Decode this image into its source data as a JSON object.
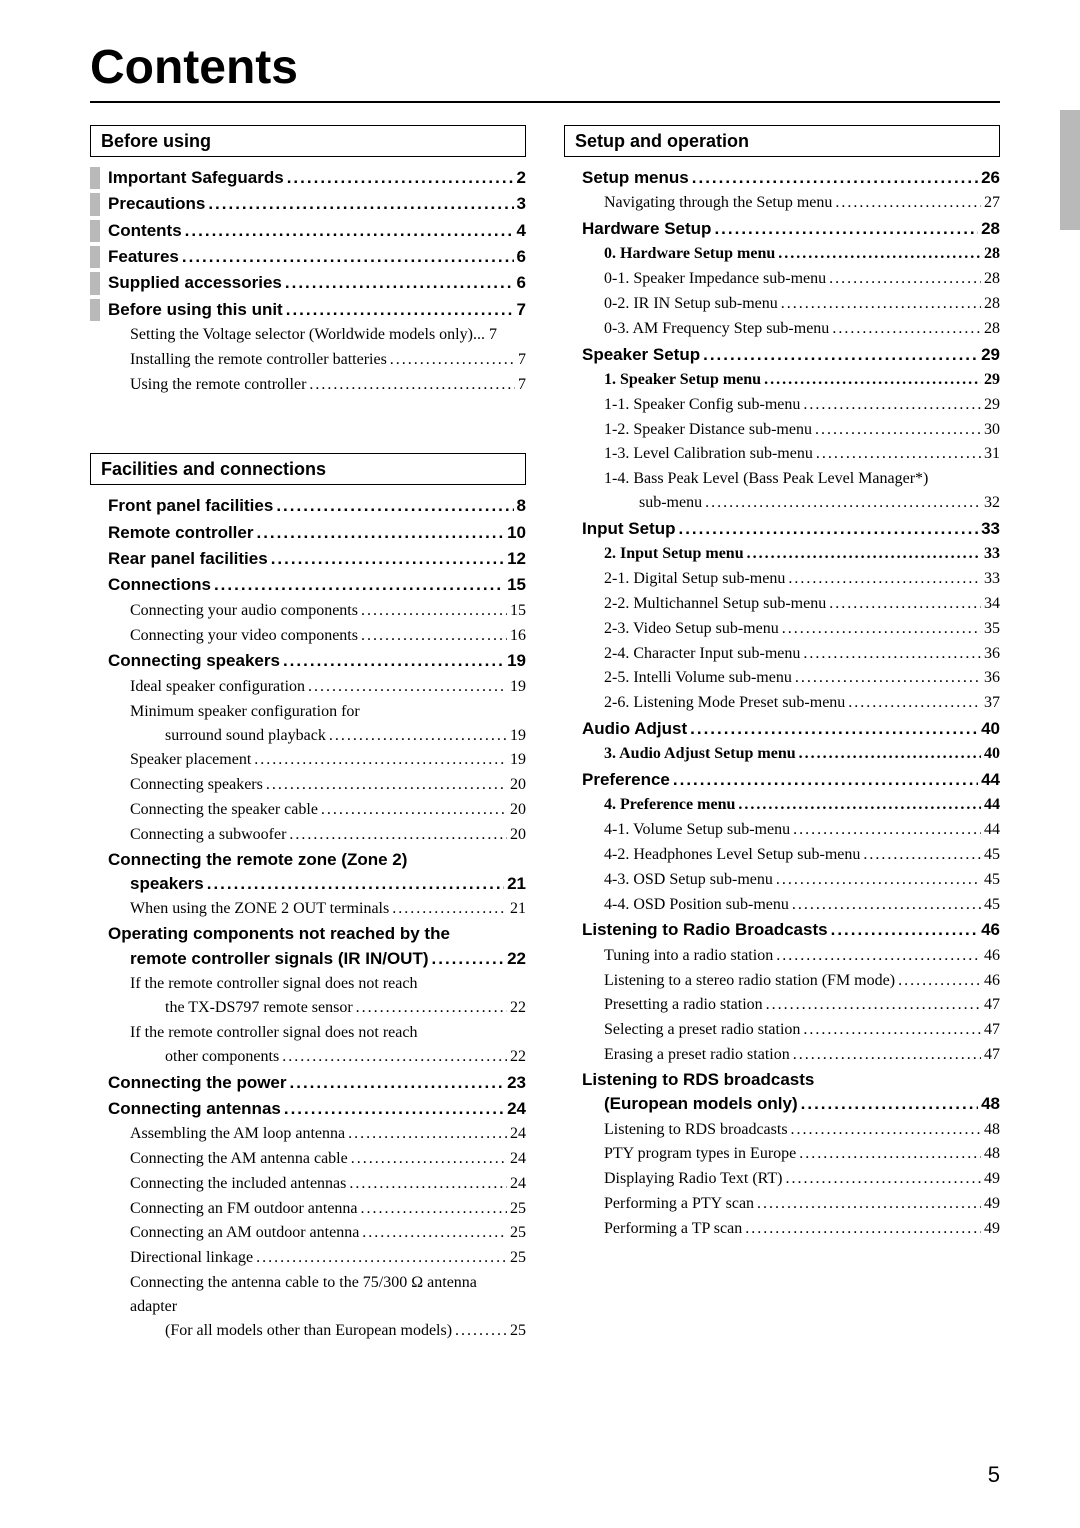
{
  "title": "Contents",
  "page_number": "5",
  "dots": "............................................................................................................",
  "left": {
    "sections": [
      {
        "heading": "Before using",
        "items": [
          {
            "cls": "lvl1 withbar",
            "t": "Important Safeguards",
            "p": "2"
          },
          {
            "cls": "lvl1 withbar",
            "t": "Precautions",
            "p": "3"
          },
          {
            "cls": "lvl1 withbar",
            "t": "Contents",
            "p": "4"
          },
          {
            "cls": "lvl1 withbar",
            "t": "Features",
            "p": "6"
          },
          {
            "cls": "lvl1 withbar",
            "t": "Supplied accessories",
            "p": "6"
          },
          {
            "cls": "lvl1 withbar",
            "t": "Before using this unit",
            "p": "7"
          },
          {
            "cls": "lvl2",
            "t": "Setting the Voltage selector (Worldwide models only)",
            "sep": " ... ",
            "p": "7"
          },
          {
            "cls": "lvl2",
            "t": "Installing the remote controller batteries",
            "p": "7"
          },
          {
            "cls": "lvl2",
            "t": "Using the remote controller",
            "p": "7"
          }
        ]
      },
      {
        "gap": true,
        "heading": "Facilities and connections",
        "items": [
          {
            "cls": "lvl1",
            "t": "Front panel facilities",
            "p": "8"
          },
          {
            "cls": "lvl1",
            "t": "Remote controller",
            "p": "10"
          },
          {
            "cls": "lvl1",
            "t": "Rear panel facilities",
            "p": "12"
          },
          {
            "cls": "lvl1",
            "t": "Connections",
            "p": "15"
          },
          {
            "cls": "lvl2",
            "t": "Connecting your audio components",
            "p": "15"
          },
          {
            "cls": "lvl2",
            "t": "Connecting your video components",
            "p": "16"
          },
          {
            "cls": "lvl1",
            "t": "Connecting speakers",
            "p": "19"
          },
          {
            "cls": "lvl2",
            "t": "Ideal speaker configuration",
            "p": "19"
          },
          {
            "cls": "wrap2",
            "t": "Minimum speaker configuration for"
          },
          {
            "cls": "lvl3",
            "t": "surround sound playback",
            "p": "19"
          },
          {
            "cls": "lvl2",
            "t": "Speaker placement",
            "p": "19"
          },
          {
            "cls": "lvl2",
            "t": "Connecting speakers",
            "p": "20"
          },
          {
            "cls": "lvl2",
            "t": "Connecting the speaker cable",
            "p": "20"
          },
          {
            "cls": "lvl2",
            "t": "Connecting a subwoofer",
            "p": "20"
          },
          {
            "cls": "wrap1",
            "t1": "Connecting the remote zone (Zone 2)",
            "t2": "speakers",
            "p": "21"
          },
          {
            "cls": "lvl2",
            "t": "When using the ZONE 2 OUT terminals",
            "p": "21"
          },
          {
            "cls": "wrap1",
            "t1": "Operating components not reached by the",
            "t2": "remote controller signals (IR IN/OUT)",
            "p": "22"
          },
          {
            "cls": "wrap2",
            "t": "If the remote controller signal does not reach"
          },
          {
            "cls": "lvl3",
            "t": "the TX-DS797 remote sensor",
            "p": "22"
          },
          {
            "cls": "wrap2",
            "t": "If the remote controller signal does not reach"
          },
          {
            "cls": "lvl3",
            "t": "other components",
            "p": "22"
          },
          {
            "cls": "lvl1",
            "t": "Connecting the power",
            "p": "23"
          },
          {
            "cls": "lvl1",
            "t": "Connecting antennas",
            "p": "24"
          },
          {
            "cls": "lvl2",
            "t": "Assembling the AM loop antenna",
            "p": "24"
          },
          {
            "cls": "lvl2",
            "t": "Connecting the AM antenna cable",
            "p": "24"
          },
          {
            "cls": "lvl2",
            "t": "Connecting the included antennas",
            "p": "24"
          },
          {
            "cls": "lvl2",
            "t": "Connecting an FM outdoor antenna",
            "p": "25"
          },
          {
            "cls": "lvl2",
            "t": "Connecting an AM outdoor antenna",
            "p": "25"
          },
          {
            "cls": "lvl2",
            "t": "Directional linkage",
            "p": "25"
          },
          {
            "cls": "wrap2",
            "t": "Connecting the antenna cable to the 75/300 Ω antenna adapter"
          },
          {
            "cls": "lvl3",
            "t": "(For all models other than European models)",
            "p": "25"
          }
        ]
      }
    ]
  },
  "right": {
    "sections": [
      {
        "heading": "Setup and operation",
        "items": [
          {
            "cls": "lvl1",
            "t": "Setup menus",
            "p": "26"
          },
          {
            "cls": "lvl2",
            "t": "Navigating through the Setup menu",
            "p": "27"
          },
          {
            "cls": "lvl1",
            "t": "Hardware Setup",
            "p": "28"
          },
          {
            "cls": "lvl2b",
            "t": "0. Hardware Setup menu",
            "p": "28"
          },
          {
            "cls": "lvl2",
            "t": "0-1. Speaker Impedance sub-menu",
            "p": "28"
          },
          {
            "cls": "lvl2",
            "t": "0-2. IR IN Setup sub-menu",
            "p": "28"
          },
          {
            "cls": "lvl2",
            "t": "0-3. AM Frequency Step sub-menu",
            "p": "28"
          },
          {
            "cls": "lvl1",
            "t": "Speaker Setup",
            "p": "29"
          },
          {
            "cls": "lvl2b",
            "t": "1. Speaker Setup menu",
            "p": "29"
          },
          {
            "cls": "lvl2",
            "t": "1-1. Speaker Config sub-menu",
            "p": "29"
          },
          {
            "cls": "lvl2",
            "t": "1-2. Speaker Distance sub-menu",
            "p": "30"
          },
          {
            "cls": "lvl2",
            "t": "1-3. Level Calibration sub-menu",
            "p": "31"
          },
          {
            "cls": "wrap2",
            "t": "1-4. Bass Peak Level (Bass Peak Level Manager*)"
          },
          {
            "cls": "lvl3",
            "t": "sub-menu",
            "p": "32"
          },
          {
            "cls": "lvl1",
            "t": "Input Setup",
            "p": "33"
          },
          {
            "cls": "lvl2b",
            "t": "2. Input Setup menu",
            "p": "33"
          },
          {
            "cls": "lvl2",
            "t": "2-1. Digital Setup sub-menu",
            "p": "33"
          },
          {
            "cls": "lvl2",
            "t": "2-2. Multichannel Setup sub-menu",
            "p": "34"
          },
          {
            "cls": "lvl2",
            "t": "2-3. Video Setup sub-menu",
            "p": "35"
          },
          {
            "cls": "lvl2",
            "t": "2-4. Character Input sub-menu",
            "p": "36"
          },
          {
            "cls": "lvl2",
            "t": "2-5. Intelli Volume sub-menu",
            "p": "36"
          },
          {
            "cls": "lvl2",
            "t": "2-6. Listening Mode Preset sub-menu",
            "p": "37"
          },
          {
            "cls": "lvl1",
            "t": "Audio Adjust",
            "p": "40"
          },
          {
            "cls": "lvl2b",
            "t": "3. Audio Adjust Setup menu",
            "p": "40"
          },
          {
            "cls": "lvl1",
            "t": "Preference",
            "p": "44"
          },
          {
            "cls": "lvl2b",
            "t": "4. Preference menu",
            "p": "44"
          },
          {
            "cls": "lvl2",
            "t": "4-1. Volume Setup sub-menu",
            "p": "44"
          },
          {
            "cls": "lvl2",
            "t": "4-2. Headphones Level Setup sub-menu",
            "p": "45"
          },
          {
            "cls": "lvl2",
            "t": "4-3. OSD Setup sub-menu",
            "p": "45"
          },
          {
            "cls": "lvl2",
            "t": "4-4. OSD Position sub-menu",
            "p": "45"
          },
          {
            "cls": "lvl1",
            "t": "Listening to Radio Broadcasts",
            "p": "46"
          },
          {
            "cls": "lvl2",
            "t": "Tuning into a radio station",
            "p": "46"
          },
          {
            "cls": "lvl2",
            "t": "Listening to a stereo radio station (FM mode)",
            "p": "46"
          },
          {
            "cls": "lvl2",
            "t": "Presetting a radio station",
            "p": "47"
          },
          {
            "cls": "lvl2",
            "t": "Selecting a preset radio station",
            "p": "47"
          },
          {
            "cls": "lvl2",
            "t": "Erasing a preset radio station",
            "p": "47"
          },
          {
            "cls": "wrap1",
            "t1": "Listening to RDS broadcasts",
            "t2": "(European models only)",
            "p": "48"
          },
          {
            "cls": "lvl2",
            "t": "Listening to RDS broadcasts",
            "p": "48"
          },
          {
            "cls": "lvl2",
            "t": "PTY program types in Europe",
            "p": "48"
          },
          {
            "cls": "lvl2",
            "t": "Displaying Radio Text (RT)",
            "p": "49"
          },
          {
            "cls": "lvl2",
            "t": "Performing a PTY scan",
            "p": "49"
          },
          {
            "cls": "lvl2",
            "t": "Performing a TP scan",
            "p": "49"
          }
        ]
      }
    ]
  }
}
